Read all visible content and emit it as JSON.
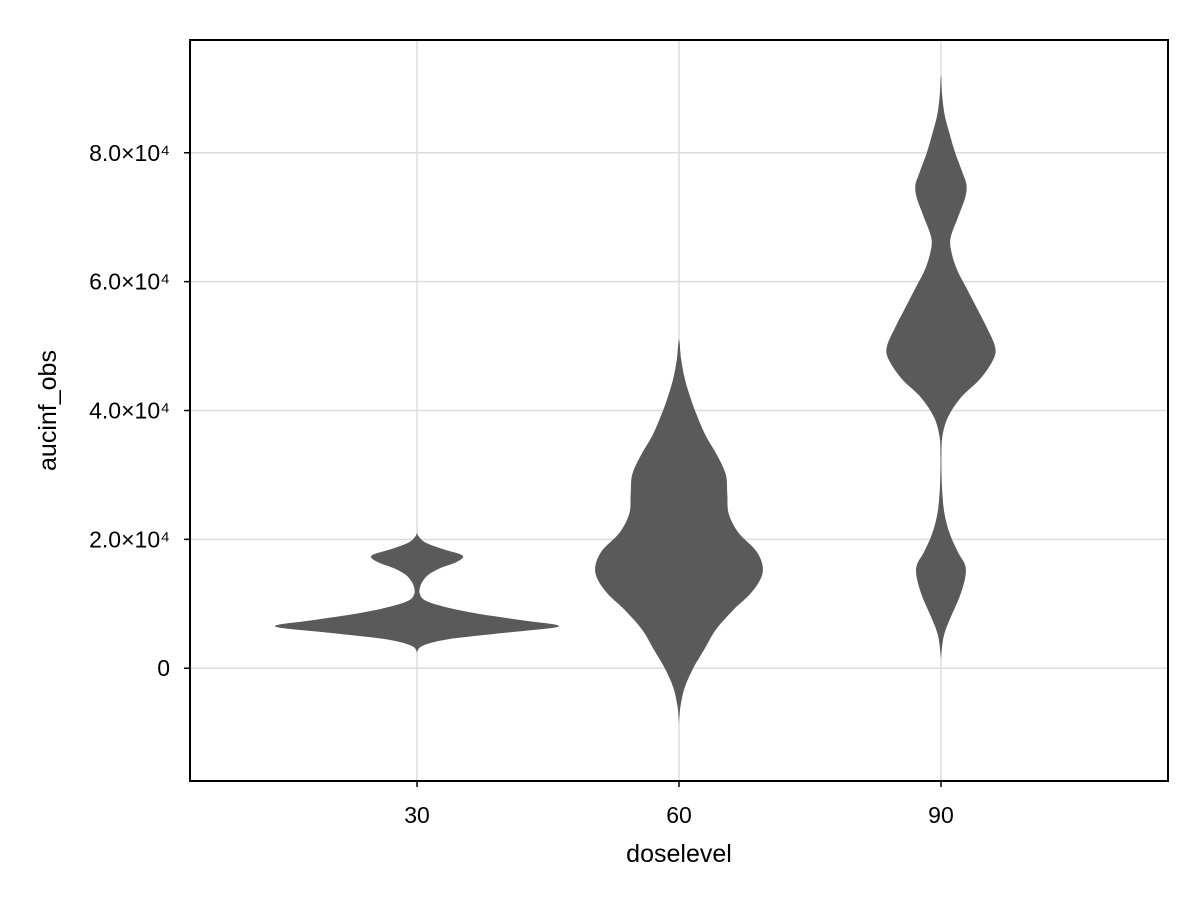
{
  "chart_data": {
    "type": "violin",
    "xlabel": "doselevel",
    "ylabel": "aucinf_obs",
    "ylim": [
      -17500,
      97500
    ],
    "xlim": [
      4,
      116
    ],
    "x_ticks": [
      {
        "value": 30,
        "label": "30"
      },
      {
        "value": 60,
        "label": "60"
      },
      {
        "value": 90,
        "label": "90"
      }
    ],
    "y_ticks": [
      {
        "value": 0,
        "label": "0"
      },
      {
        "value": 20000,
        "label": "2.0×10⁴"
      },
      {
        "value": 40000,
        "label": "4.0×10⁴"
      },
      {
        "value": 60000,
        "label": "6.0×10⁴"
      },
      {
        "value": 80000,
        "label": "8.0×10⁴"
      }
    ],
    "grid": true,
    "fill_color": "#5a5a5a",
    "violins": [
      {
        "x": 30,
        "profile": [
          [
            2500,
            0
          ],
          [
            3500,
            0.04
          ],
          [
            4500,
            0.22
          ],
          [
            5500,
            0.62
          ],
          [
            6500,
            1.0
          ],
          [
            7500,
            0.72
          ],
          [
            8500,
            0.42
          ],
          [
            9500,
            0.2
          ],
          [
            10500,
            0.06
          ],
          [
            11500,
            0.02
          ],
          [
            12500,
            0.02
          ],
          [
            13500,
            0.04
          ],
          [
            14500,
            0.08
          ],
          [
            15500,
            0.16
          ],
          [
            16500,
            0.28
          ],
          [
            17500,
            0.32
          ],
          [
            18500,
            0.18
          ],
          [
            19500,
            0.06
          ],
          [
            20500,
            0.01
          ],
          [
            21000,
            0
          ]
        ]
      },
      {
        "x": 60,
        "profile": [
          [
            -8500,
            0
          ],
          [
            -6000,
            0.01
          ],
          [
            -3000,
            0.04
          ],
          [
            0,
            0.1
          ],
          [
            3000,
            0.18
          ],
          [
            6000,
            0.26
          ],
          [
            9000,
            0.38
          ],
          [
            12000,
            0.52
          ],
          [
            15000,
            0.59
          ],
          [
            18000,
            0.55
          ],
          [
            21000,
            0.42
          ],
          [
            24000,
            0.35
          ],
          [
            27000,
            0.34
          ],
          [
            30000,
            0.33
          ],
          [
            33000,
            0.27
          ],
          [
            36000,
            0.19
          ],
          [
            39000,
            0.13
          ],
          [
            42000,
            0.08
          ],
          [
            45000,
            0.04
          ],
          [
            48000,
            0.015
          ],
          [
            51000,
            0
          ]
        ]
      },
      {
        "x": 90,
        "profile": [
          [
            1500,
            0
          ],
          [
            5000,
            0.02
          ],
          [
            8000,
            0.07
          ],
          [
            11000,
            0.13
          ],
          [
            14000,
            0.17
          ],
          [
            16000,
            0.17
          ],
          [
            18000,
            0.12
          ],
          [
            21000,
            0.06
          ],
          [
            24000,
            0.025
          ],
          [
            27000,
            0.01
          ],
          [
            30000,
            0.004
          ],
          [
            33000,
            0.003
          ],
          [
            36000,
            0.01
          ],
          [
            39000,
            0.05
          ],
          [
            42000,
            0.14
          ],
          [
            45000,
            0.28
          ],
          [
            48000,
            0.37
          ],
          [
            50000,
            0.38
          ],
          [
            53000,
            0.32
          ],
          [
            56000,
            0.25
          ],
          [
            59000,
            0.18
          ],
          [
            62000,
            0.11
          ],
          [
            65000,
            0.07
          ],
          [
            67000,
            0.07
          ],
          [
            70000,
            0.12
          ],
          [
            73000,
            0.17
          ],
          [
            75000,
            0.18
          ],
          [
            77000,
            0.15
          ],
          [
            80000,
            0.1
          ],
          [
            83000,
            0.06
          ],
          [
            86000,
            0.025
          ],
          [
            89000,
            0.008
          ],
          [
            92000,
            0
          ]
        ]
      }
    ]
  }
}
